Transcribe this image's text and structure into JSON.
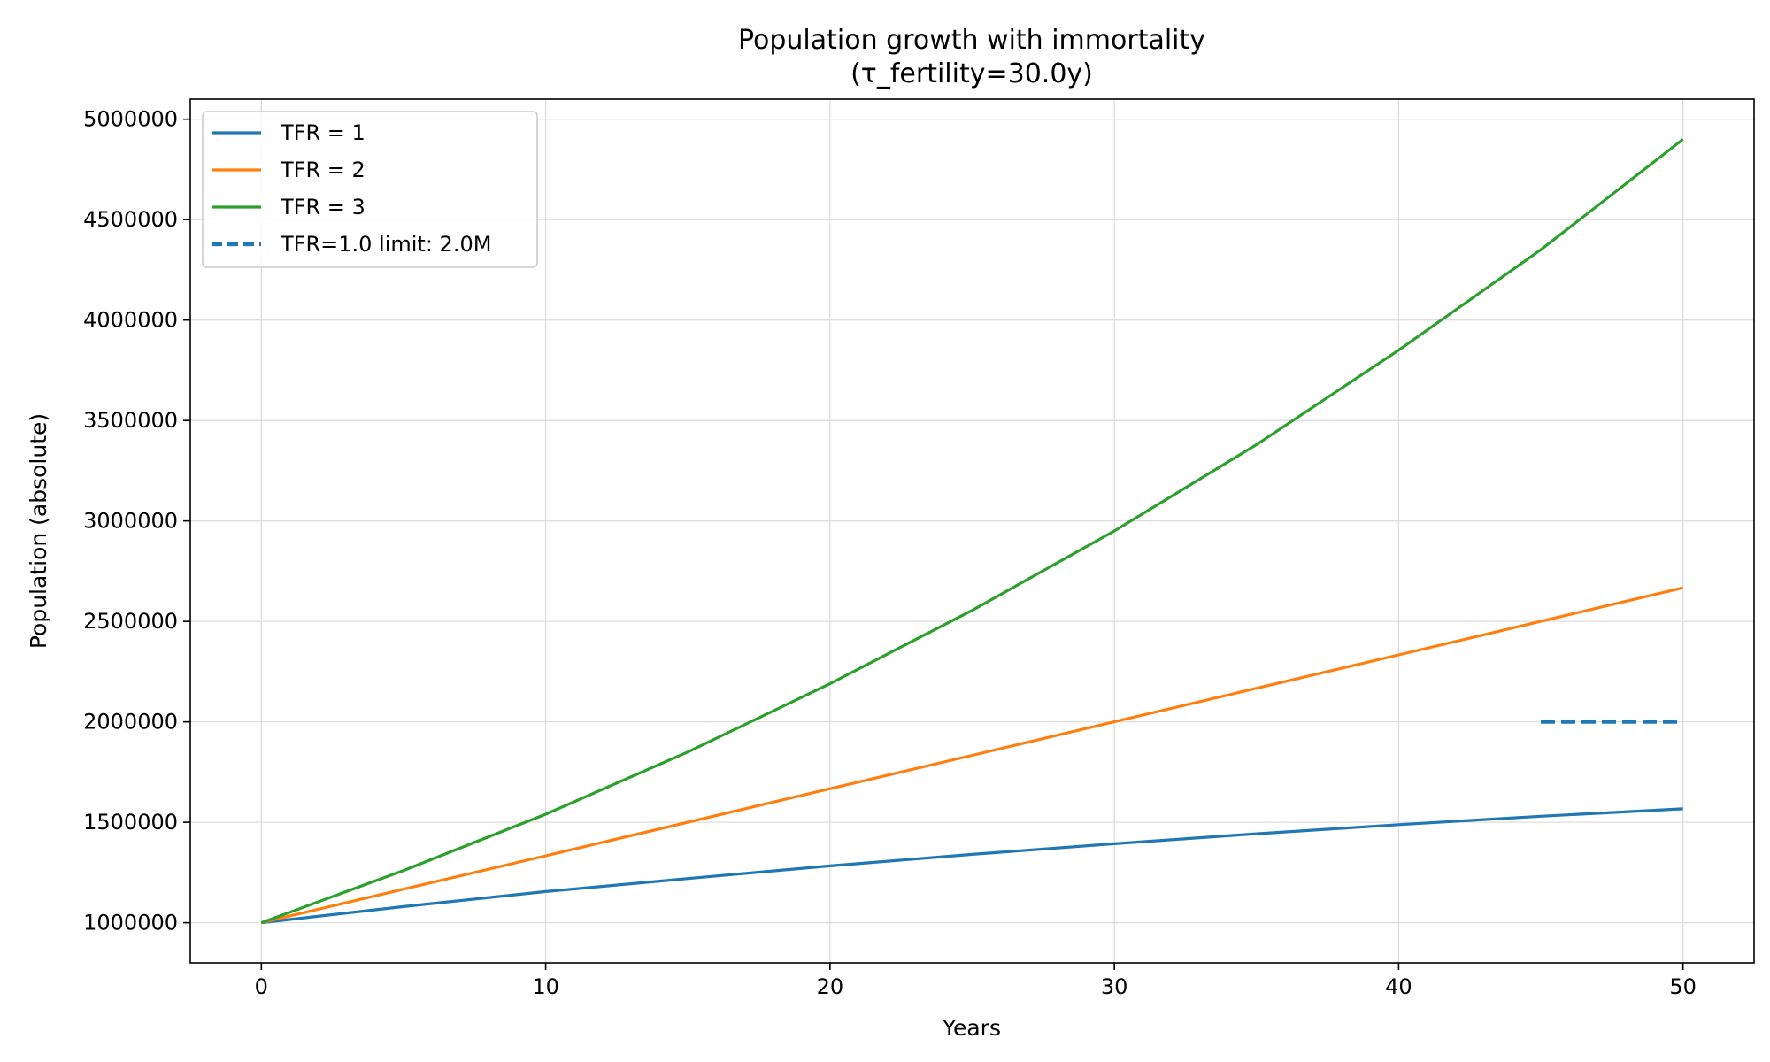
{
  "chart_data": {
    "type": "line",
    "title": "Population growth with immortality",
    "subtitle": "(τ_fertility=30.0y)",
    "xlabel": "Years",
    "ylabel": "Population (absolute)",
    "xlim": [
      -2.5,
      52.5
    ],
    "ylim": [
      800000,
      5100000
    ],
    "xticks": [
      0,
      10,
      20,
      30,
      40,
      50
    ],
    "yticks": [
      1000000,
      1500000,
      2000000,
      2500000,
      3000000,
      3500000,
      4000000,
      4500000,
      5000000
    ],
    "grid": true,
    "legend_position": "upper-left",
    "series": [
      {
        "name": "TFR = 1",
        "color": "#1f77b4",
        "style": "solid",
        "x": [
          0,
          5,
          10,
          15,
          20,
          25,
          30,
          35,
          40,
          45,
          50
        ],
        "y": [
          1000000,
          1080000,
          1155000,
          1220000,
          1283000,
          1340000,
          1393000,
          1443000,
          1488000,
          1530000,
          1567000
        ]
      },
      {
        "name": "TFR = 2",
        "color": "#ff7f0e",
        "style": "solid",
        "x": [
          0,
          5,
          10,
          15,
          20,
          25,
          30,
          35,
          40,
          45,
          50
        ],
        "y": [
          1000000,
          1167000,
          1333000,
          1500000,
          1667000,
          1833000,
          2000000,
          2167000,
          2333000,
          2500000,
          2667000
        ]
      },
      {
        "name": "TFR = 3",
        "color": "#2ca02c",
        "style": "solid",
        "x": [
          0,
          5,
          10,
          15,
          20,
          25,
          30,
          35,
          40,
          45,
          50
        ],
        "y": [
          1000000,
          1260000,
          1540000,
          1850000,
          2190000,
          2555000,
          2950000,
          3380000,
          3850000,
          4350000,
          4900000
        ]
      },
      {
        "name": "TFR=1.0 limit: 2.0M",
        "color": "#1f77b4",
        "style": "dashed",
        "x": [
          45,
          50
        ],
        "y": [
          2000000,
          2000000
        ]
      }
    ]
  }
}
